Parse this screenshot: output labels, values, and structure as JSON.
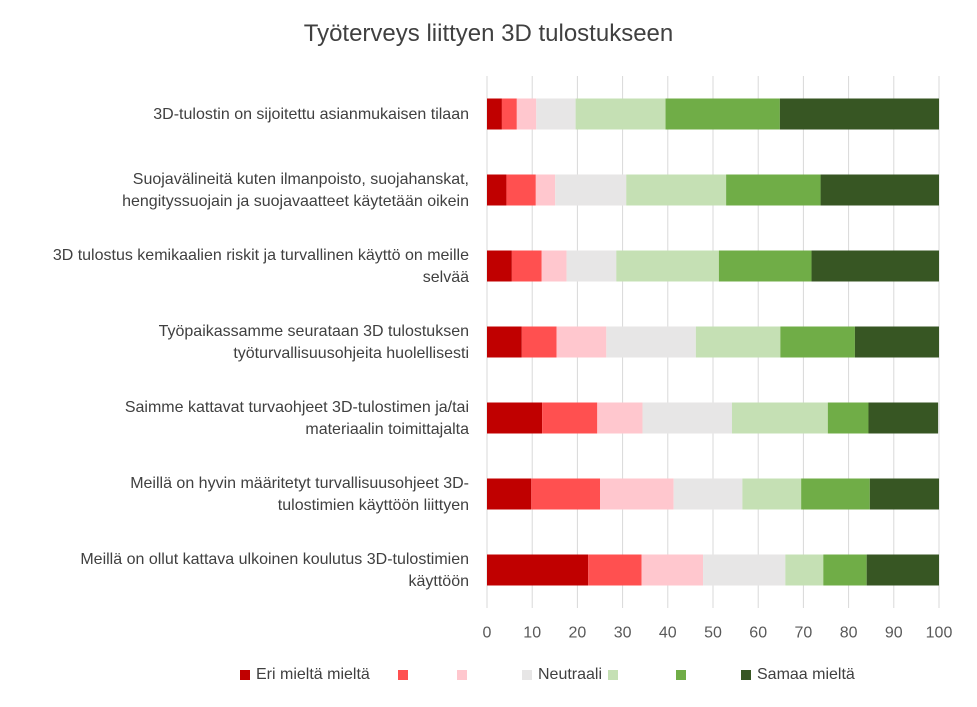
{
  "chart_data": {
    "type": "bar",
    "orientation": "horizontal",
    "stacked": true,
    "title": "Työterveys liittyen 3D tulostukseen",
    "categories": [
      [
        "3D-tulostin on sijoitettu asianmukaisen tilaan"
      ],
      [
        "Suojavälineitä kuten ilmanpoisto, suojahanskat,",
        "hengityssuojain ja suojavaatteet käytetään oikein"
      ],
      [
        "3D tulostus kemikaalien riskit ja turvallinen käyttö on meille",
        "selvää"
      ],
      [
        "Työpaikassamme seurataan 3D tulostuksen",
        "työturvallisuusohjeita huolellisesti"
      ],
      [
        "Saimme kattavat turvaohjeet 3D-tulostimen ja/tai",
        "materiaalin toimittajalta"
      ],
      [
        "Meillä on hyvin määritetyt turvallisuusohjeet 3D-",
        "tulostimien käyttöön liittyen"
      ],
      [
        "Meillä on ollut kattava ulkoinen koulutus 3D-tulostimien",
        "käyttöön"
      ]
    ],
    "series": [
      {
        "name": "Eri mieltä mieltä",
        "color": "#C00000",
        "values": [
          3.3,
          4.3,
          5.5,
          7.7,
          12.2,
          9.8,
          22.4
        ]
      },
      {
        "name": "",
        "color": "#FF5050",
        "values": [
          3.3,
          6.5,
          6.6,
          7.7,
          12.2,
          15.2,
          11.8
        ]
      },
      {
        "name": "",
        "color": "#FFC7CE",
        "values": [
          4.3,
          4.3,
          5.5,
          11.0,
          10.0,
          16.3,
          13.6
        ]
      },
      {
        "name": "Neutraali",
        "color": "#E7E6E6",
        "values": [
          8.7,
          15.7,
          11.0,
          19.8,
          19.8,
          15.2,
          18.2
        ]
      },
      {
        "name": "",
        "color": "#C5E0B4",
        "values": [
          19.9,
          22.1,
          22.7,
          18.7,
          21.2,
          13.0,
          8.4
        ]
      },
      {
        "name": "",
        "color": "#70AD47",
        "values": [
          25.3,
          20.9,
          20.5,
          16.5,
          9.0,
          15.2,
          9.6
        ]
      },
      {
        "name": "Samaa mieltä",
        "color": "#375623",
        "values": [
          35.2,
          26.2,
          28.2,
          18.6,
          15.4,
          15.3,
          16.0
        ]
      }
    ],
    "xlim": [
      0,
      100
    ],
    "xticks": [
      0,
      10,
      20,
      30,
      40,
      50,
      60,
      70,
      80,
      90,
      100
    ],
    "grid": "vertical",
    "legend": "bottom"
  }
}
